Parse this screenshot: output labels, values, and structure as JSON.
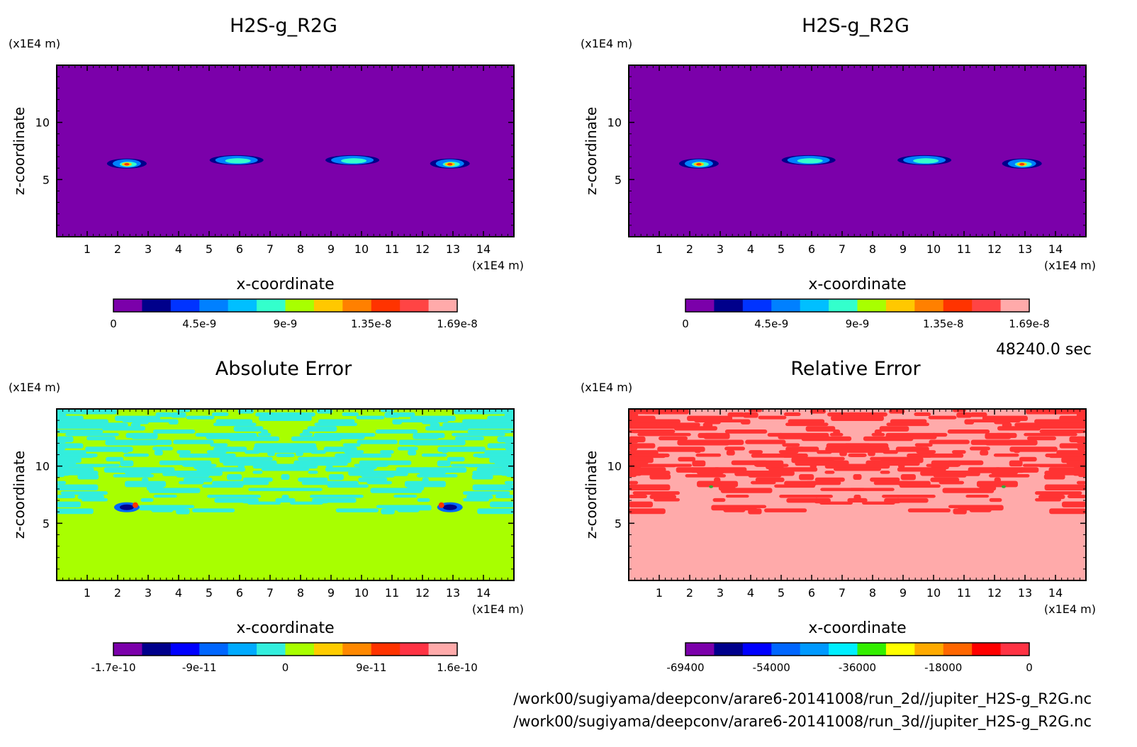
{
  "chart_data": [
    {
      "type": "heatmap",
      "title": "H2S-g_R2G",
      "xlabel": "x-coordinate",
      "ylabel": "z-coordinate",
      "x_unit": "(x1E4 m)",
      "y_unit": "(x1E4 m)",
      "xlim": [
        0,
        15
      ],
      "ylim": [
        0,
        15
      ],
      "x_ticks": [
        "1",
        "2",
        "3",
        "4",
        "5",
        "6",
        "7",
        "8",
        "9",
        "10",
        "11",
        "12",
        "13",
        "14"
      ],
      "y_ticks": [
        "5",
        "10"
      ],
      "background_color": "#7b00aa",
      "colorbar": {
        "colors": [
          "#7b00aa",
          "#00008b",
          "#0033ff",
          "#0080ff",
          "#00bfff",
          "#33ffcc",
          "#a8ff00",
          "#ffc800",
          "#ff8000",
          "#ff3300",
          "#ff4444",
          "#ffaaaa"
        ],
        "labels": [
          "0",
          "4.5e-9",
          "9e-9",
          "1.35e-8",
          "1.69e-8"
        ]
      },
      "features": [
        {
          "x": 2.3,
          "z": 6.4,
          "level": 1.0
        },
        {
          "x": 5.9,
          "z": 6.7,
          "level": 0.45
        },
        {
          "x": 9.7,
          "z": 6.7,
          "level": 0.45
        },
        {
          "x": 12.9,
          "z": 6.4,
          "level": 1.0
        }
      ]
    },
    {
      "type": "heatmap",
      "title": "H2S-g_R2G",
      "xlabel": "x-coordinate",
      "ylabel": "z-coordinate",
      "x_unit": "(x1E4 m)",
      "y_unit": "(x1E4 m)",
      "xlim": [
        0,
        15
      ],
      "ylim": [
        0,
        15
      ],
      "x_ticks": [
        "1",
        "2",
        "3",
        "4",
        "5",
        "6",
        "7",
        "8",
        "9",
        "10",
        "11",
        "12",
        "13",
        "14"
      ],
      "y_ticks": [
        "5",
        "10"
      ],
      "background_color": "#7b00aa",
      "colorbar": {
        "colors": [
          "#7b00aa",
          "#00008b",
          "#0033ff",
          "#0080ff",
          "#00bfff",
          "#33ffcc",
          "#a8ff00",
          "#ffc800",
          "#ff8000",
          "#ff3300",
          "#ff4444",
          "#ffaaaa"
        ],
        "labels": [
          "0",
          "4.5e-9",
          "9e-9",
          "1.35e-8",
          "1.69e-8"
        ]
      },
      "features": [
        {
          "x": 2.3,
          "z": 6.4,
          "level": 1.0
        },
        {
          "x": 5.9,
          "z": 6.7,
          "level": 0.45
        },
        {
          "x": 9.7,
          "z": 6.7,
          "level": 0.45
        },
        {
          "x": 12.9,
          "z": 6.4,
          "level": 1.0
        }
      ]
    },
    {
      "type": "heatmap",
      "title": "Absolute Error",
      "xlabel": "x-coordinate",
      "ylabel": "z-coordinate",
      "x_unit": "(x1E4 m)",
      "y_unit": "(x1E4 m)",
      "xlim": [
        0,
        15
      ],
      "ylim": [
        0,
        15
      ],
      "x_ticks": [
        "1",
        "2",
        "3",
        "4",
        "5",
        "6",
        "7",
        "8",
        "9",
        "10",
        "11",
        "12",
        "13",
        "14"
      ],
      "y_ticks": [
        "5",
        "10"
      ],
      "background_color": "#a8ff00",
      "patch_color": "#33eedd",
      "colorbar": {
        "colors": [
          "#7b00aa",
          "#00008b",
          "#0000ff",
          "#0066ff",
          "#00aaff",
          "#33eedd",
          "#a8ff00",
          "#ffcc00",
          "#ff8800",
          "#ff3300",
          "#ff3344",
          "#ffaaaa"
        ],
        "labels": [
          "-1.7e-10",
          "-9e-11",
          "0",
          "9e-11",
          "1.6e-10"
        ]
      }
    },
    {
      "type": "heatmap",
      "title": "Relative Error",
      "xlabel": "x-coordinate",
      "ylabel": "z-coordinate",
      "x_unit": "(x1E4 m)",
      "y_unit": "(x1E4 m)",
      "xlim": [
        0,
        15
      ],
      "ylim": [
        0,
        15
      ],
      "x_ticks": [
        "1",
        "2",
        "3",
        "4",
        "5",
        "6",
        "7",
        "8",
        "9",
        "10",
        "11",
        "12",
        "13",
        "14"
      ],
      "y_ticks": [
        "5",
        "10"
      ],
      "background_color": "#ffaaaa",
      "patch_color": "#ff3333",
      "colorbar": {
        "colors": [
          "#7b00aa",
          "#00008b",
          "#0000ff",
          "#0066ff",
          "#0099ff",
          "#00eeff",
          "#33ee00",
          "#ffff00",
          "#ffaa00",
          "#ff6600",
          "#ff0000",
          "#ff3344"
        ],
        "labels": [
          "-69400",
          "-54000",
          "-36000",
          "-18000",
          "0"
        ]
      }
    }
  ],
  "time_label": "48240.0 sec",
  "file_paths": [
    "/work00/sugiyama/deepconv/arare6-20141008/run_2d//jupiter_H2S-g_R2G.nc",
    "/work00/sugiyama/deepconv/arare6-20141008/run_3d//jupiter_H2S-g_R2G.nc"
  ]
}
